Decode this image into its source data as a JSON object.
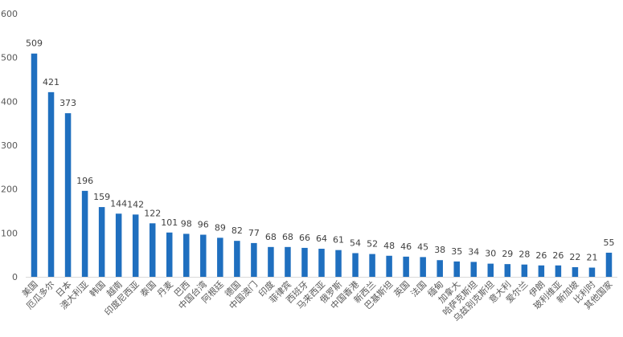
{
  "chart_data": {
    "type": "bar",
    "title": "",
    "xlabel": "",
    "ylabel": "",
    "ylim": [
      0,
      600
    ],
    "yticks": [
      0,
      100,
      200,
      300,
      400,
      500,
      600
    ],
    "grid": false,
    "legend": "none",
    "bar_color": "#1f6fbf",
    "categories": [
      "美国",
      "厄瓜多尔",
      "日本",
      "澳大利亚",
      "韩国",
      "越南",
      "印度尼西亚",
      "泰国",
      "丹麦",
      "巴西",
      "中国台湾",
      "阿根廷",
      "德国",
      "中国澳门",
      "印度",
      "菲律宾",
      "西班牙",
      "马来西亚",
      "俄罗斯",
      "中国香港",
      "新西兰",
      "巴基斯坦",
      "英国",
      "法国",
      "缅甸",
      "加拿大",
      "哈萨克斯坦",
      "乌兹别克斯坦",
      "意大利",
      "爱尔兰",
      "伊朗",
      "玻利维亚",
      "新加坡",
      "比利时",
      "其他国家"
    ],
    "values": [
      509,
      421,
      373,
      196,
      159,
      144,
      142,
      122,
      101,
      98,
      96,
      89,
      82,
      77,
      68,
      68,
      66,
      64,
      61,
      54,
      52,
      48,
      46,
      45,
      38,
      35,
      34,
      30,
      29,
      28,
      26,
      26,
      22,
      21,
      55
    ],
    "value_labels": [
      "509",
      "421",
      "373",
      "196",
      "159",
      "144",
      "142",
      "122",
      "101",
      "98",
      "96",
      "89",
      "82",
      "77",
      "68",
      "68",
      "66",
      "64",
      "61",
      "54",
      "52",
      "48",
      "46",
      "45",
      "38",
      "35",
      "34",
      "30",
      "29",
      "28",
      "26",
      "26",
      "22",
      "21",
      "55"
    ]
  }
}
